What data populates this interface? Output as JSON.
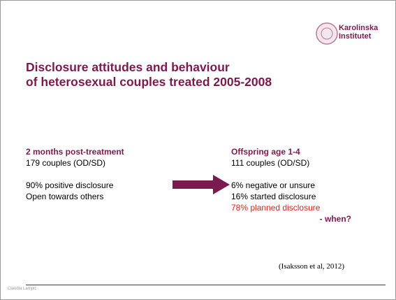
{
  "header": {
    "logo": "Karolinska\nInstitutet",
    "title": "Disclosure attitudes and behaviour\nof heterosexual couples treated 2005-2008"
  },
  "left": {
    "heading": "2 months post-treatment",
    "lines": [
      "179 couples (OD/SD)",
      "",
      "90% positive disclosure",
      "Open towards others"
    ]
  },
  "right": {
    "heading": "Offspring age 1-4",
    "lines": [
      "111 couples (OD/SD)",
      "",
      "6% negative or unsure",
      "16% started disclosure"
    ],
    "highlight": "78% planned disclosure",
    "question": "- when?"
  },
  "citation": "(Isaksson et al, 2012)",
  "footer": "Claudia Lampic"
}
